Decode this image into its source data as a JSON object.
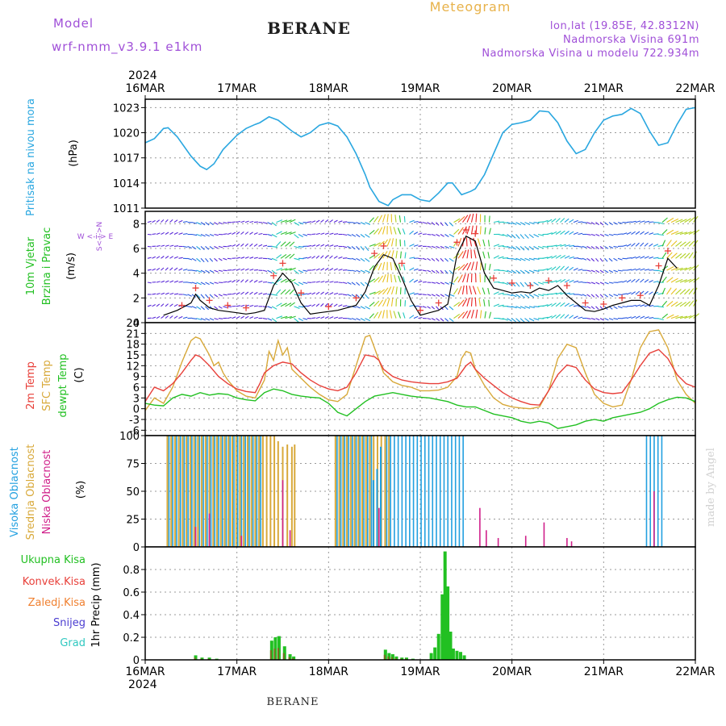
{
  "header": {
    "model_label": "Model",
    "model_name": "wrf-nmm_v3.9.1  e1km",
    "product": "Meteogram",
    "station": "BERANE",
    "coords": "lon,lat (19.85E, 42.8312N)",
    "altitude": "Nadmorska Visina 691m",
    "model_altitude": "Nadmorska Visina u modelu 722.934m",
    "year_top": "2024",
    "year_bottom": "2024",
    "footer_station": "BERANE",
    "watermark": "made by Angel"
  },
  "colors": {
    "pressure": "#2aa7e0",
    "temp2m": "#e8403a",
    "sfc_temp": "#d8a93a",
    "dewpt": "#22c022",
    "cloud_high": "#22a0e0",
    "cloud_mid": "#d8a93a",
    "cloud_low": "#d0208a",
    "precip_total": "#22c022",
    "precip_conv": "#e8403a",
    "precip_frozen": "#f08030",
    "snow": "#4a3cd0",
    "graupel": "#30c8c0",
    "wind_speed": "#000000",
    "gust": "#e8403a"
  },
  "chart_data": [
    {
      "type": "line",
      "panel": "pressure",
      "title": "",
      "ylabel": [
        "Pritisak na nivou mora",
        "(hPa)"
      ],
      "x_ticks": [
        "16MAR",
        "17MAR",
        "18MAR",
        "19MAR",
        "20MAR",
        "21MAR",
        "22MAR"
      ],
      "ylim": [
        1011,
        1024
      ],
      "yticks": [
        1011,
        1014,
        1017,
        1020,
        1023
      ],
      "grid": true,
      "series": [
        {
          "name": "Pritisak na nivou mora",
          "x": [
            0,
            0.1,
            0.2,
            0.25,
            0.35,
            0.5,
            0.6,
            0.67,
            0.75,
            0.85,
            1.0,
            1.1,
            1.2,
            1.25,
            1.35,
            1.45,
            1.6,
            1.7,
            1.8,
            1.9,
            2.0,
            2.1,
            2.2,
            2.3,
            2.4,
            2.45,
            2.55,
            2.65,
            2.7,
            2.8,
            2.9,
            3.0,
            3.1,
            3.2,
            3.3,
            3.35,
            3.45,
            3.55,
            3.6,
            3.7,
            3.8,
            3.9,
            4.0,
            4.1,
            4.2,
            4.3,
            4.4,
            4.5,
            4.6,
            4.7,
            4.8,
            4.9,
            5.0,
            5.1,
            5.2,
            5.3,
            5.4,
            5.5,
            5.6,
            5.7,
            5.8,
            5.9,
            6.0
          ],
          "y": [
            1018.8,
            1019.3,
            1020.5,
            1020.6,
            1019.5,
            1017.2,
            1016.0,
            1015.6,
            1016.3,
            1018.0,
            1019.7,
            1020.5,
            1021.0,
            1021.2,
            1021.9,
            1021.5,
            1020.2,
            1019.5,
            1020.0,
            1020.9,
            1021.2,
            1020.8,
            1019.5,
            1017.5,
            1015.0,
            1013.5,
            1011.8,
            1011.3,
            1012.0,
            1012.6,
            1012.6,
            1012.0,
            1011.8,
            1012.8,
            1014.0,
            1014.0,
            1012.6,
            1013.0,
            1013.3,
            1015.0,
            1017.5,
            1020.0,
            1021.0,
            1021.2,
            1021.5,
            1022.6,
            1022.5,
            1021.2,
            1019.0,
            1017.5,
            1018.0,
            1020.0,
            1021.5,
            1022.0,
            1022.2,
            1022.9,
            1022.3,
            1020.2,
            1018.5,
            1018.8,
            1021.0,
            1022.8,
            1023.0
          ]
        }
      ]
    },
    {
      "type": "line",
      "panel": "wind",
      "title": "",
      "ylabel": [
        "10m Vjetar",
        "Brzina i Pravac",
        "(m/s)"
      ],
      "direction_legend": "W <-i-> E",
      "direction_legend_vertical": "S<-i->N",
      "x_ticks": [
        "16MAR",
        "17MAR",
        "18MAR",
        "19MAR",
        "20MAR",
        "21MAR",
        "22MAR"
      ],
      "ylim": [
        0,
        9
      ],
      "yticks": [
        0,
        2,
        4,
        6,
        8
      ],
      "grid": true,
      "series": [
        {
          "name": "10m wind speed",
          "x": [
            0.2,
            0.35,
            0.5,
            0.55,
            0.6,
            0.7,
            0.8,
            0.9,
            1.0,
            1.1,
            1.2,
            1.3,
            1.4,
            1.5,
            1.6,
            1.7,
            1.8,
            1.9,
            2.0,
            2.1,
            2.2,
            2.3,
            2.4,
            2.5,
            2.6,
            2.7,
            2.8,
            2.9,
            3.0,
            3.1,
            3.2,
            3.3,
            3.4,
            3.5,
            3.6,
            3.7,
            3.8,
            3.9,
            4.0,
            4.1,
            4.2,
            4.3,
            4.4,
            4.5,
            4.6,
            4.7,
            4.8,
            4.9,
            5.0,
            5.1,
            5.2,
            5.3,
            5.4,
            5.5,
            5.6,
            5.7,
            5.8
          ],
          "y": [
            0.6,
            1.0,
            1.6,
            2.3,
            1.8,
            1.2,
            1.0,
            0.9,
            0.8,
            0.7,
            0.8,
            1.0,
            3.0,
            4.0,
            3.2,
            1.6,
            0.7,
            0.8,
            0.9,
            1.0,
            1.2,
            1.4,
            2.5,
            4.5,
            5.5,
            5.2,
            3.6,
            1.8,
            0.6,
            0.8,
            1.0,
            1.5,
            5.5,
            7.0,
            6.6,
            4.0,
            2.8,
            2.6,
            2.4,
            2.5,
            2.4,
            2.8,
            2.6,
            3.0,
            2.2,
            1.6,
            1.0,
            0.9,
            1.1,
            1.4,
            1.6,
            1.8,
            1.8,
            1.4,
            3.0,
            5.2,
            4.4
          ]
        },
        {
          "name": "gusts",
          "x": [
            0.4,
            0.55,
            0.7,
            0.9,
            1.1,
            1.4,
            1.5,
            1.7,
            2.0,
            2.3,
            2.5,
            2.6,
            2.8,
            3.0,
            3.2,
            3.4,
            3.5,
            3.6,
            3.8,
            4.0,
            4.2,
            4.4,
            4.6,
            4.8,
            5.0,
            5.2,
            5.4,
            5.6,
            5.7
          ],
          "y": [
            1.4,
            2.8,
            1.8,
            1.4,
            1.2,
            3.8,
            4.8,
            2.4,
            1.3,
            2.0,
            5.6,
            6.2,
            4.8,
            1.0,
            1.6,
            6.5,
            7.5,
            7.2,
            3.6,
            3.2,
            3.0,
            3.4,
            3.0,
            1.6,
            1.5,
            2.0,
            2.2,
            4.6,
            5.8
          ]
        }
      ]
    },
    {
      "type": "line",
      "panel": "temperature",
      "title": "",
      "ylabel": [
        "2m Temp",
        "SFC Temp",
        "dewpt Temp",
        "(C)"
      ],
      "x_ticks": [
        "16MAR",
        "17MAR",
        "18MAR",
        "19MAR",
        "20MAR",
        "21MAR",
        "22MAR"
      ],
      "ylim": [
        -7.5,
        24
      ],
      "yticks": [
        -6,
        -3,
        0,
        3,
        6,
        9,
        12,
        15,
        18,
        21,
        24
      ],
      "grid": true,
      "series": [
        {
          "name": "2m Temp",
          "x": [
            0,
            0.1,
            0.2,
            0.3,
            0.4,
            0.5,
            0.55,
            0.6,
            0.7,
            0.8,
            0.9,
            1.0,
            1.1,
            1.2,
            1.25,
            1.3,
            1.4,
            1.5,
            1.6,
            1.7,
            1.8,
            1.9,
            2.0,
            2.1,
            2.2,
            2.3,
            2.4,
            2.5,
            2.55,
            2.6,
            2.7,
            2.8,
            2.9,
            3.0,
            3.1,
            3.2,
            3.3,
            3.4,
            3.5,
            3.55,
            3.6,
            3.7,
            3.8,
            3.9,
            4.0,
            4.1,
            4.2,
            4.3,
            4.4,
            4.5,
            4.6,
            4.7,
            4.8,
            4.9,
            5.0,
            5.1,
            5.2,
            5.3,
            5.4,
            5.5,
            5.6,
            5.7,
            5.8,
            5.9,
            6.0
          ],
          "y": [
            2.0,
            6.0,
            5.0,
            7.0,
            10.0,
            13.5,
            15.0,
            14.5,
            12.0,
            9.0,
            7.0,
            5.5,
            4.8,
            4.5,
            7.0,
            10.0,
            12.0,
            13.0,
            12.5,
            10.0,
            8.0,
            6.5,
            5.5,
            5.0,
            6.0,
            10.0,
            15.0,
            14.5,
            13.5,
            11.0,
            9.0,
            8.0,
            7.5,
            7.2,
            7.0,
            7.0,
            7.5,
            8.5,
            12.0,
            13.0,
            11.0,
            8.5,
            6.5,
            4.5,
            3.0,
            2.0,
            1.2,
            1.0,
            5.0,
            9.5,
            12.2,
            11.5,
            8.0,
            5.5,
            4.5,
            4.2,
            4.5,
            8.0,
            12.0,
            15.5,
            16.5,
            14.0,
            9.5,
            7.0,
            6.0
          ]
        },
        {
          "name": "SFC Temp",
          "x": [
            0,
            0.1,
            0.2,
            0.3,
            0.4,
            0.5,
            0.55,
            0.6,
            0.7,
            0.75,
            0.8,
            0.85,
            0.9,
            1.0,
            1.1,
            1.2,
            1.3,
            1.35,
            1.4,
            1.45,
            1.5,
            1.55,
            1.6,
            1.7,
            1.8,
            1.9,
            2.0,
            2.1,
            2.2,
            2.3,
            2.4,
            2.45,
            2.5,
            2.6,
            2.7,
            2.8,
            2.9,
            3.0,
            3.1,
            3.2,
            3.3,
            3.4,
            3.45,
            3.5,
            3.55,
            3.6,
            3.7,
            3.8,
            3.9,
            4.0,
            4.1,
            4.2,
            4.3,
            4.4,
            4.5,
            4.6,
            4.7,
            4.8,
            4.9,
            5.0,
            5.1,
            5.2,
            5.3,
            5.4,
            5.5,
            5.6,
            5.7,
            5.8,
            5.9,
            6.0
          ],
          "y": [
            -0.5,
            3.0,
            1.5,
            6.0,
            13.0,
            19.0,
            20.0,
            19.5,
            15.0,
            12.0,
            13.0,
            10.0,
            8.0,
            5.0,
            3.5,
            3.0,
            8.0,
            16.0,
            13.5,
            19.0,
            15.0,
            17.0,
            11.0,
            8.5,
            6.0,
            4.0,
            2.5,
            2.0,
            4.0,
            12.0,
            20.0,
            20.5,
            17.0,
            10.0,
            7.5,
            6.5,
            6.0,
            5.0,
            5.0,
            5.2,
            6.0,
            9.0,
            14.0,
            16.0,
            15.5,
            11.0,
            6.5,
            3.0,
            1.2,
            0.5,
            0.2,
            0.0,
            0.5,
            5.0,
            14.0,
            18.0,
            17.0,
            10.0,
            4.0,
            1.5,
            0.5,
            1.0,
            8.0,
            17.0,
            21.5,
            22.0,
            17.0,
            8.0,
            4.0,
            1.5
          ]
        },
        {
          "name": "dewpt Temp",
          "x": [
            0,
            0.1,
            0.2,
            0.3,
            0.4,
            0.5,
            0.6,
            0.7,
            0.8,
            0.9,
            1.0,
            1.1,
            1.2,
            1.3,
            1.4,
            1.5,
            1.6,
            1.7,
            1.8,
            1.9,
            2.0,
            2.1,
            2.2,
            2.3,
            2.4,
            2.5,
            2.6,
            2.7,
            2.8,
            2.9,
            3.0,
            3.1,
            3.2,
            3.3,
            3.4,
            3.5,
            3.6,
            3.7,
            3.8,
            3.9,
            4.0,
            4.1,
            4.2,
            4.3,
            4.4,
            4.5,
            4.6,
            4.7,
            4.8,
            4.9,
            5.0,
            5.1,
            5.2,
            5.3,
            5.4,
            5.5,
            5.6,
            5.7,
            5.8,
            5.9,
            6.0
          ],
          "y": [
            1.5,
            1.0,
            0.8,
            3.0,
            4.0,
            3.5,
            4.5,
            3.8,
            4.2,
            4.0,
            3.0,
            2.5,
            2.2,
            4.5,
            5.5,
            5.0,
            4.0,
            3.5,
            3.2,
            3.0,
            1.5,
            -1.0,
            -2.0,
            0.0,
            2.0,
            3.5,
            4.0,
            4.5,
            4.0,
            3.5,
            3.2,
            3.0,
            2.5,
            2.0,
            1.0,
            0.5,
            0.5,
            -0.5,
            -1.5,
            -2.0,
            -2.5,
            -3.5,
            -4.0,
            -3.5,
            -4.0,
            -5.5,
            -5.0,
            -4.5,
            -3.5,
            -3.0,
            -3.5,
            -2.5,
            -2.0,
            -1.5,
            -1.0,
            0.0,
            1.5,
            2.5,
            3.2,
            3.0,
            2.0
          ]
        }
      ]
    },
    {
      "type": "bar",
      "panel": "cloud",
      "title": "",
      "ylabel": [
        "Visoka Oblacnost",
        "Srednja Oblacnost",
        "Niska Oblacnost",
        "(%)"
      ],
      "x_ticks": [
        "16MAR",
        "17MAR",
        "18MAR",
        "19MAR",
        "20MAR",
        "21MAR",
        "22MAR"
      ],
      "ylim": [
        0,
        100
      ],
      "yticks": [
        0,
        25,
        50,
        75,
        100
      ],
      "grid": true,
      "mid_full_ranges": [
        [
          0.23,
          1.42
        ],
        [
          2.05,
          2.68
        ]
      ],
      "high_full_ranges": [
        [
          0.23,
          1.25
        ],
        [
          2.05,
          2.45
        ],
        [
          2.58,
          3.45
        ],
        [
          5.45,
          5.62
        ]
      ],
      "low_spikes": [
        {
          "x": 0.55,
          "v": 18
        },
        {
          "x": 0.7,
          "v": 30
        },
        {
          "x": 1.05,
          "v": 10
        },
        {
          "x": 1.5,
          "v": 60
        },
        {
          "x": 1.58,
          "v": 15
        },
        {
          "x": 2.55,
          "v": 35
        },
        {
          "x": 3.65,
          "v": 35
        },
        {
          "x": 3.72,
          "v": 15
        },
        {
          "x": 3.85,
          "v": 8
        },
        {
          "x": 4.15,
          "v": 10
        },
        {
          "x": 4.35,
          "v": 22
        },
        {
          "x": 4.6,
          "v": 8
        },
        {
          "x": 4.65,
          "v": 5
        },
        {
          "x": 5.55,
          "v": 50
        }
      ]
    },
    {
      "type": "bar",
      "panel": "precip",
      "title": "",
      "ylabel": [
        "Ukupna Kisa",
        "Konvek.Kisa",
        "Zaledj.Kisa",
        "Snijeg",
        "Grad",
        "1hr Precip (mm)"
      ],
      "x_ticks": [
        "16MAR",
        "17MAR",
        "18MAR",
        "19MAR",
        "20MAR",
        "21MAR",
        "22MAR"
      ],
      "ylim": [
        0,
        1.0
      ],
      "yticks": [
        0,
        0.2,
        0.4,
        0.6,
        0.8
      ],
      "grid": true,
      "series": [
        {
          "name": "Ukupna Kisa",
          "x": [
            0.55,
            0.62,
            0.7,
            0.78,
            1.38,
            1.42,
            1.46,
            1.52,
            1.58,
            1.62,
            2.62,
            2.66,
            2.7,
            2.74,
            2.8,
            2.85,
            2.92,
            3.12,
            3.16,
            3.2,
            3.24,
            3.27,
            3.3,
            3.33,
            3.36,
            3.4,
            3.44,
            3.48
          ],
          "values": [
            0.04,
            0.02,
            0.02,
            0.01,
            0.17,
            0.2,
            0.21,
            0.12,
            0.05,
            0.03,
            0.09,
            0.06,
            0.05,
            0.03,
            0.02,
            0.02,
            0.01,
            0.06,
            0.11,
            0.23,
            0.58,
            0.96,
            0.65,
            0.25,
            0.1,
            0.08,
            0.07,
            0.04
          ]
        }
      ]
    }
  ]
}
